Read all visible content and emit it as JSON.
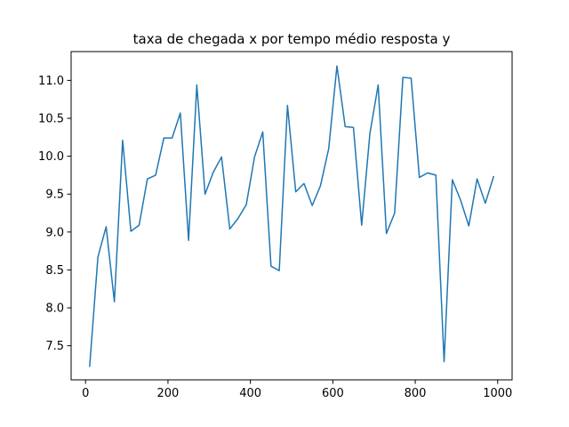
{
  "chart_data": {
    "type": "line",
    "title": "taxa de chegada x por tempo médio resposta y",
    "xlabel": "",
    "ylabel": "",
    "xlim": [
      -35,
      1035
    ],
    "ylim": [
      7.05,
      11.38
    ],
    "xticks": [
      0,
      200,
      400,
      600,
      800,
      1000
    ],
    "yticks": [
      7.5,
      8.0,
      8.5,
      9.0,
      9.5,
      10.0,
      10.5,
      11.0
    ],
    "xtick_labels": [
      "0",
      "200",
      "400",
      "600",
      "800",
      "1000"
    ],
    "ytick_labels": [
      "7.5",
      "8.0",
      "8.5",
      "9.0",
      "9.5",
      "10.0",
      "10.5",
      "11.0"
    ],
    "grid": false,
    "series": [
      {
        "color": "#1f77b4",
        "x": [
          10,
          30,
          50,
          70,
          90,
          110,
          130,
          150,
          170,
          190,
          210,
          230,
          250,
          270,
          290,
          310,
          330,
          350,
          370,
          390,
          410,
          430,
          450,
          470,
          490,
          510,
          530,
          550,
          570,
          590,
          610,
          630,
          650,
          670,
          690,
          710,
          730,
          750,
          770,
          790,
          810,
          830,
          850,
          870,
          890,
          910,
          930,
          950,
          970,
          990
        ],
        "y": [
          7.23,
          8.67,
          9.07,
          8.08,
          10.21,
          9.01,
          9.09,
          9.7,
          9.75,
          10.24,
          10.24,
          10.57,
          8.89,
          10.94,
          9.5,
          9.79,
          9.99,
          9.04,
          9.18,
          9.36,
          9.99,
          10.32,
          8.55,
          8.49,
          10.67,
          9.53,
          9.64,
          9.35,
          9.61,
          10.1,
          11.19,
          10.39,
          10.38,
          9.09,
          10.3,
          10.94,
          8.98,
          9.25,
          11.04,
          11.03,
          9.72,
          9.78,
          9.75,
          7.29,
          9.69,
          9.42,
          9.08,
          9.7,
          9.38,
          9.73
        ]
      }
    ]
  }
}
